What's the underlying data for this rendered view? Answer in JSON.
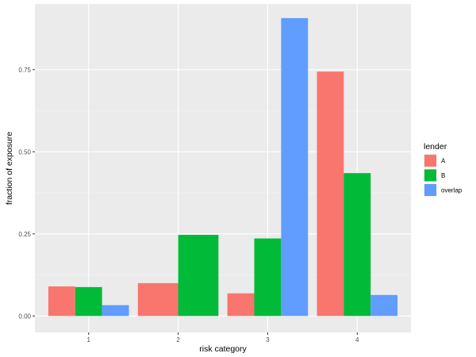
{
  "chart_data": {
    "type": "bar",
    "xlabel": "risk category",
    "ylabel": "fraction of exposure",
    "categories": [
      "1",
      "2",
      "3",
      "4"
    ],
    "ylim": [
      -0.05,
      0.95
    ],
    "yticks": [
      0.0,
      0.25,
      0.5,
      0.75
    ],
    "ytick_labels": [
      "0.00",
      "0.25",
      "0.50",
      "0.75"
    ],
    "grid": true,
    "legend": {
      "title": "lender",
      "position": "right"
    },
    "series": [
      {
        "name": "A",
        "color": "#F8766D",
        "values": [
          0.09,
          0.1,
          0.069,
          0.744
        ]
      },
      {
        "name": "B",
        "color": "#00BA38",
        "values": [
          0.088,
          0.247,
          0.236,
          0.435
        ]
      },
      {
        "name": "overlap",
        "color": "#619CFF",
        "values": [
          0.033,
          null,
          0.907,
          0.064
        ]
      }
    ]
  }
}
